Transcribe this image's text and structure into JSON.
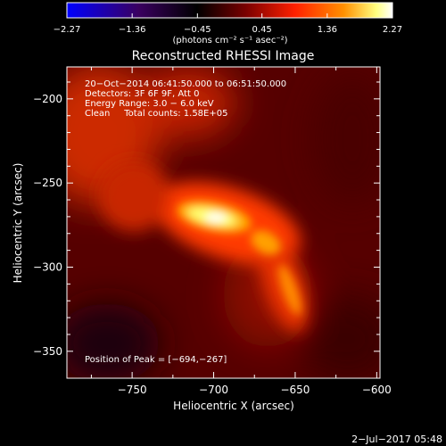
{
  "chart_data": {
    "type": "heatmap",
    "title": "Reconstructed RHESSI Image",
    "xlabel": "Heliocentric X (arcsec)",
    "ylabel": "Heliocentric Y (arcsec)",
    "xlim": [
      -790,
      -598
    ],
    "ylim": [
      -366,
      -181
    ],
    "xticks": [
      -750,
      -700,
      -650,
      -600
    ],
    "xtick_labels": [
      "−750",
      "−700",
      "−650",
      "−600"
    ],
    "yticks": [
      -350,
      -300,
      -250,
      -200
    ],
    "ytick_labels": [
      "−350",
      "−300",
      "−250",
      "−200"
    ],
    "colorbar": {
      "min": -2.27,
      "max": 2.27,
      "ticks": [
        -2.27,
        -1.36,
        -0.45,
        0.45,
        1.36,
        2.27
      ],
      "tick_labels": [
        "−2.27",
        "−1.36",
        "−0.45",
        "0.45",
        "1.36",
        "2.27"
      ],
      "unit_label": "(photons cm⁻² s⁻¹ asec⁻²)",
      "colors": [
        "#0000ff",
        "#3a0060",
        "#000000",
        "#7a0000",
        "#ff2000",
        "#ff9000",
        "#ffff80",
        "#ffffff"
      ]
    },
    "annotations": {
      "lines": [
        "20−Oct−2014 06:41:50.000 to 06:51:50.000",
        "Detectors: 3F 6F 9F, Att 0",
        "Energy Range: 3.0 − 6.0 keV",
        "Clean     Total counts: 1.58E+05"
      ],
      "peak": "Position of Peak = [−694,−267]"
    },
    "peak": {
      "x": -694,
      "y": -267
    },
    "timestamp": "2−Jul−2017 05:48"
  }
}
